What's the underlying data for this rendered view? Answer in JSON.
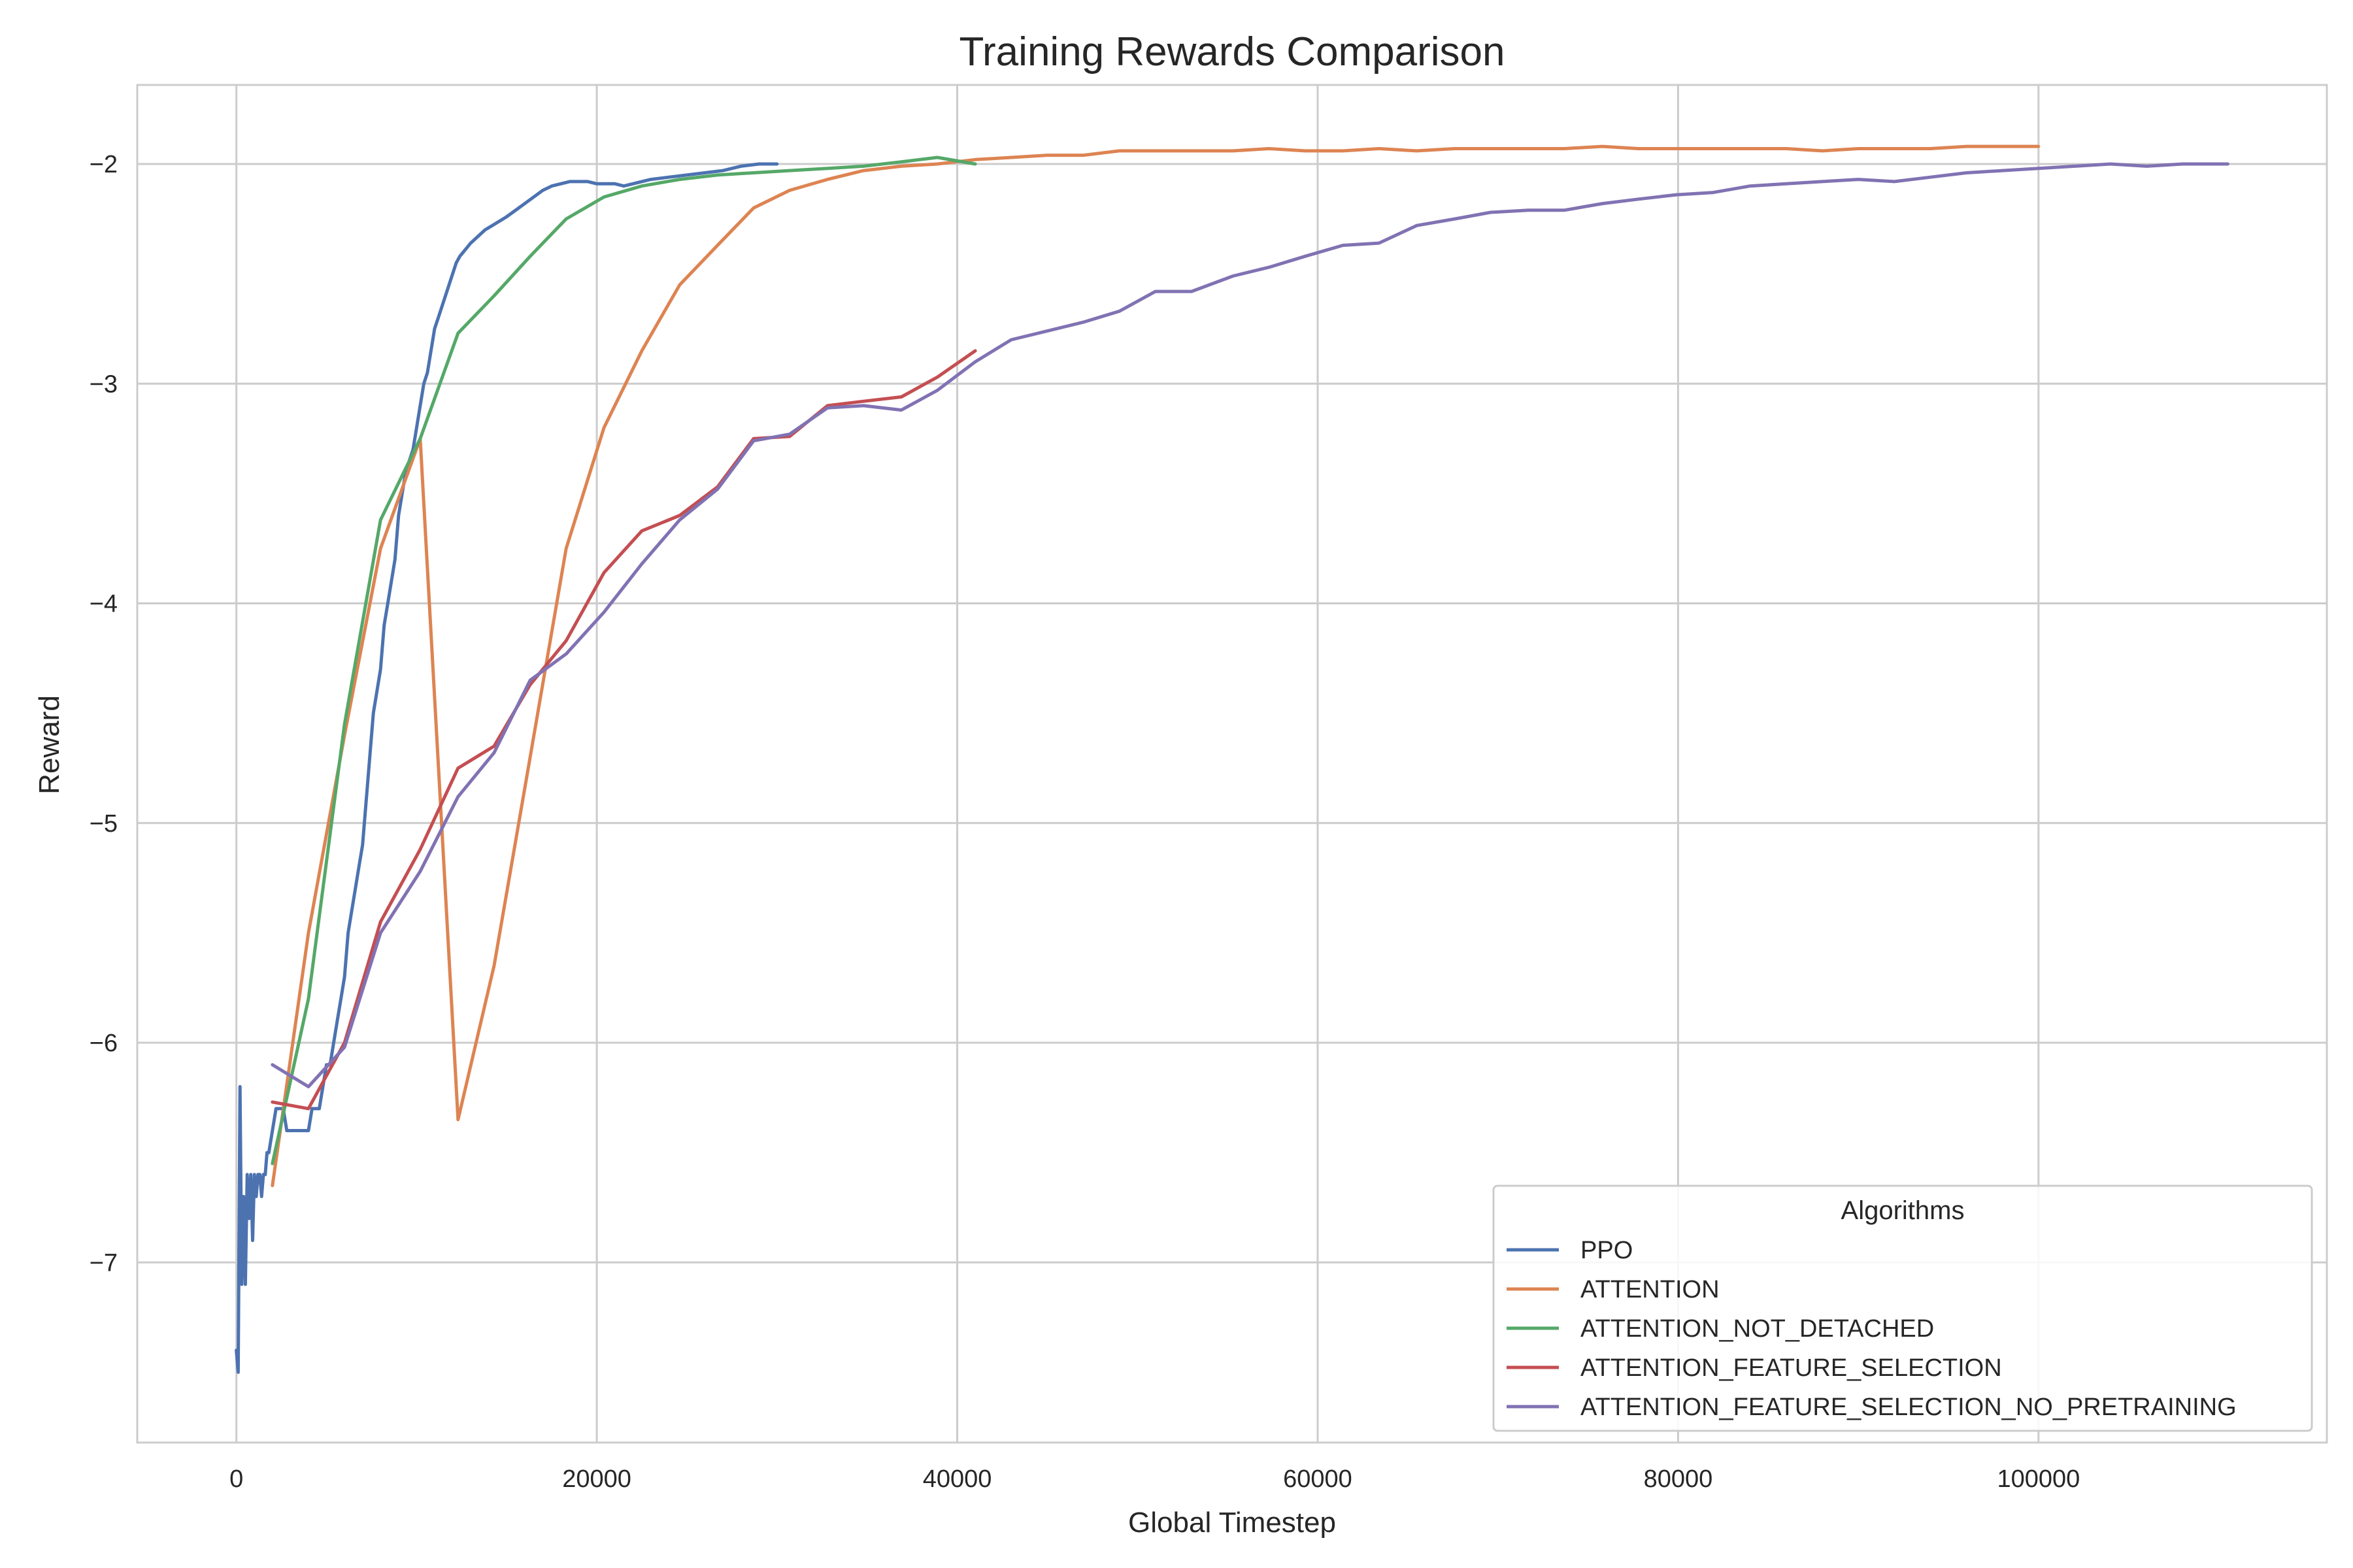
{
  "chart_data": {
    "type": "line",
    "title": "Training Rewards Comparison",
    "xlabel": "Global Timestep",
    "ylabel": "Reward",
    "xlim": [
      -5500,
      116000
    ],
    "ylim": [
      -7.82,
      -1.64
    ],
    "xticks": [
      0,
      20000,
      40000,
      60000,
      80000,
      100000
    ],
    "xtick_labels": [
      "0",
      "20000",
      "40000",
      "60000",
      "80000",
      "100000"
    ],
    "yticks": [
      -7,
      -6,
      -5,
      -4,
      -3,
      -2
    ],
    "ytick_labels": [
      "−7",
      "−6",
      "−5",
      "−4",
      "−3",
      "−2"
    ],
    "grid": true,
    "legend": {
      "title": "Algorithms",
      "position": "bottom-right"
    },
    "series": [
      {
        "name": "PPO",
        "color": "#4c72b0",
        "x": [
          0,
          100,
          200,
          300,
          400,
          500,
          600,
          700,
          800,
          900,
          1000,
          1100,
          1200,
          1300,
          1400,
          1500,
          1600,
          1700,
          1800,
          2000,
          2200,
          2400,
          2600,
          2800,
          3000,
          3200,
          3400,
          3600,
          3800,
          4000,
          4200,
          4400,
          4600,
          4800,
          5000,
          5200,
          5400,
          5600,
          5800,
          6000,
          6200,
          6400,
          6600,
          6800,
          7000,
          7200,
          7400,
          7600,
          7800,
          8000,
          8200,
          8400,
          8600,
          8800,
          9000,
          9200,
          9400,
          9600,
          9800,
          10000,
          10200,
          10400,
          10600,
          10800,
          11000,
          11200,
          11400,
          11600,
          11800,
          12000,
          12200,
          12400,
          12600,
          12800,
          13000,
          13400,
          13800,
          14200,
          14600,
          15000,
          15500,
          16000,
          16500,
          17000,
          17500,
          18000,
          18500,
          19000,
          19500,
          20000,
          20500,
          21000,
          21500,
          22000,
          22500,
          23000,
          24000,
          25000,
          26000,
          27000,
          28000,
          29000,
          30000
        ],
        "y": [
          -7.4,
          -7.5,
          -6.2,
          -7.1,
          -6.7,
          -7.1,
          -6.6,
          -6.8,
          -6.6,
          -6.9,
          -6.6,
          -6.7,
          -6.6,
          -6.6,
          -6.7,
          -6.6,
          -6.6,
          -6.5,
          -6.5,
          -6.4,
          -6.3,
          -6.3,
          -6.3,
          -6.4,
          -6.4,
          -6.4,
          -6.4,
          -6.4,
          -6.4,
          -6.4,
          -6.3,
          -6.3,
          -6.3,
          -6.2,
          -6.1,
          -6.1,
          -6.0,
          -5.9,
          -5.8,
          -5.7,
          -5.5,
          -5.4,
          -5.3,
          -5.2,
          -5.1,
          -4.9,
          -4.7,
          -4.5,
          -4.4,
          -4.3,
          -4.1,
          -4.0,
          -3.9,
          -3.8,
          -3.6,
          -3.5,
          -3.4,
          -3.35,
          -3.3,
          -3.2,
          -3.1,
          -3.0,
          -2.95,
          -2.85,
          -2.75,
          -2.7,
          -2.65,
          -2.6,
          -2.55,
          -2.5,
          -2.45,
          -2.42,
          -2.4,
          -2.38,
          -2.36,
          -2.33,
          -2.3,
          -2.28,
          -2.26,
          -2.24,
          -2.21,
          -2.18,
          -2.15,
          -2.12,
          -2.1,
          -2.09,
          -2.08,
          -2.08,
          -2.08,
          -2.09,
          -2.09,
          -2.09,
          -2.1,
          -2.09,
          -2.08,
          -2.07,
          -2.06,
          -2.05,
          -2.04,
          -2.03,
          -2.01,
          -2.0,
          -2.0
        ]
      },
      {
        "name": "ATTENTION",
        "color": "#dd8452",
        "x": [
          2000,
          4000,
          6000,
          8000,
          10200,
          12300,
          14300,
          16300,
          18300,
          20400,
          22500,
          24600,
          26700,
          28700,
          30700,
          32800,
          34800,
          36900,
          38900,
          41000,
          43000,
          45000,
          47000,
          49000,
          51000,
          53000,
          55300,
          57300,
          59300,
          61400,
          63400,
          65500,
          67600,
          69600,
          71700,
          73700,
          75800,
          77800,
          79900,
          81900,
          84000,
          86000,
          88000,
          90000,
          92000,
          94000,
          96000,
          98000,
          100000
        ],
        "y": [
          -6.65,
          -5.5,
          -4.6,
          -3.75,
          -3.25,
          -6.35,
          -5.65,
          -4.7,
          -3.75,
          -3.2,
          -2.85,
          -2.55,
          -2.37,
          -2.2,
          -2.12,
          -2.07,
          -2.03,
          -2.01,
          -2.0,
          -1.98,
          -1.97,
          -1.96,
          -1.96,
          -1.94,
          -1.94,
          -1.94,
          -1.94,
          -1.93,
          -1.94,
          -1.94,
          -1.93,
          -1.94,
          -1.93,
          -1.93,
          -1.93,
          -1.93,
          -1.92,
          -1.93,
          -1.93,
          -1.93,
          -1.93,
          -1.93,
          -1.94,
          -1.93,
          -1.93,
          -1.93,
          -1.92,
          -1.92,
          -1.92
        ]
      },
      {
        "name": "ATTENTION_NOT_DETACHED",
        "color": "#55a868",
        "x": [
          2000,
          4000,
          6000,
          8000,
          10200,
          12300,
          14300,
          16300,
          18300,
          20400,
          22500,
          24600,
          26700,
          28700,
          30700,
          32800,
          34800,
          36900,
          38900,
          41000
        ],
        "y": [
          -6.55,
          -5.8,
          -4.55,
          -3.62,
          -3.25,
          -2.77,
          -2.6,
          -2.42,
          -2.25,
          -2.15,
          -2.1,
          -2.07,
          -2.05,
          -2.04,
          -2.03,
          -2.02,
          -2.01,
          -1.99,
          -1.97,
          -2.0
        ]
      },
      {
        "name": "ATTENTION_FEATURE_SELECTION",
        "color": "#c44e52",
        "x": [
          2000,
          4000,
          6000,
          8000,
          10200,
          12300,
          14300,
          16300,
          18300,
          20400,
          22500,
          24600,
          26700,
          28700,
          30700,
          32800,
          34800,
          36900,
          38900,
          41000
        ],
        "y": [
          -6.27,
          -6.3,
          -6.0,
          -5.45,
          -5.12,
          -4.75,
          -4.65,
          -4.37,
          -4.17,
          -3.86,
          -3.67,
          -3.6,
          -3.47,
          -3.25,
          -3.24,
          -3.1,
          -3.08,
          -3.06,
          -2.97,
          -2.85
        ]
      },
      {
        "name": "ATTENTION_FEATURE_SELECTION_NO_PRETRAINING",
        "color": "#8172b3",
        "x": [
          2000,
          4000,
          6000,
          8000,
          10200,
          12300,
          14300,
          16300,
          18300,
          20400,
          22500,
          24600,
          26700,
          28700,
          30700,
          32800,
          34800,
          36900,
          38900,
          41000,
          43000,
          45000,
          47000,
          49000,
          51000,
          53000,
          55300,
          57300,
          59300,
          61400,
          63400,
          65500,
          67600,
          69600,
          71700,
          73700,
          75800,
          77800,
          79900,
          81900,
          84000,
          86000,
          88000,
          90000,
          92000,
          94000,
          96000,
          98000,
          100000,
          102000,
          104000,
          106000,
          108000,
          110500
        ],
        "y": [
          -6.1,
          -6.2,
          -6.02,
          -5.5,
          -5.22,
          -4.88,
          -4.68,
          -4.35,
          -4.23,
          -4.04,
          -3.82,
          -3.62,
          -3.48,
          -3.26,
          -3.23,
          -3.11,
          -3.1,
          -3.12,
          -3.03,
          -2.9,
          -2.8,
          -2.76,
          -2.72,
          -2.67,
          -2.58,
          -2.58,
          -2.51,
          -2.47,
          -2.42,
          -2.37,
          -2.36,
          -2.28,
          -2.25,
          -2.22,
          -2.21,
          -2.21,
          -2.18,
          -2.16,
          -2.14,
          -2.13,
          -2.1,
          -2.09,
          -2.08,
          -2.07,
          -2.08,
          -2.06,
          -2.04,
          -2.03,
          -2.02,
          -2.01,
          -2.0,
          -2.01,
          -2.0,
          -2.0
        ]
      }
    ]
  }
}
